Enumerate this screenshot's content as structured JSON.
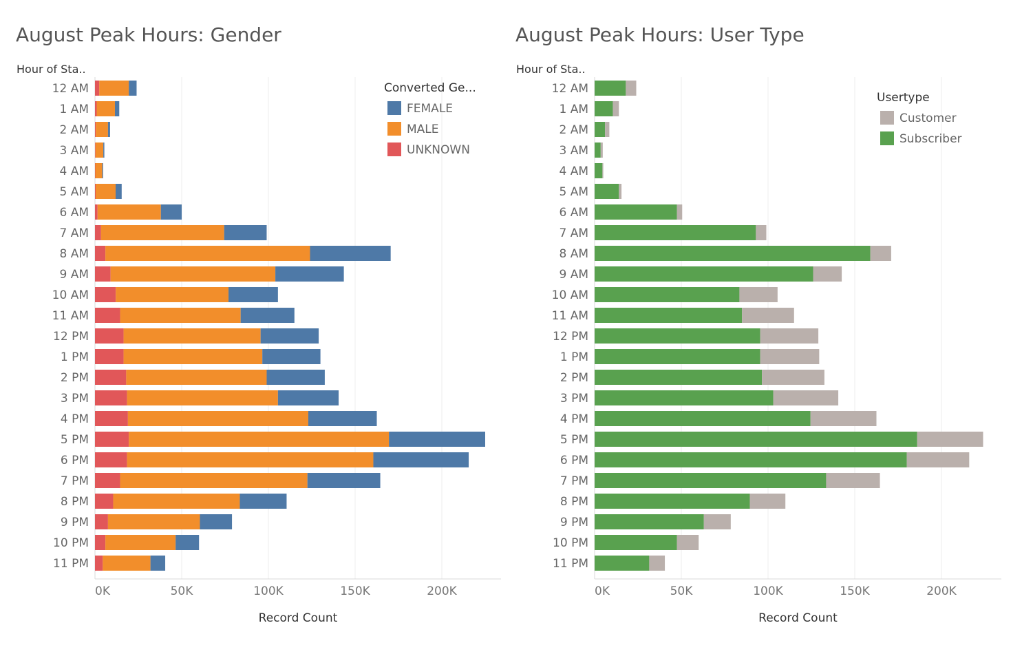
{
  "colors": {
    "female": "#4e79a7",
    "male": "#f28e2b",
    "unknown": "#e15759",
    "customer": "#bab0ac",
    "subscriber": "#59a14f"
  },
  "chart_data": [
    {
      "type": "bar",
      "orientation": "horizontal",
      "stacked": true,
      "title": "August Peak Hours: Gender",
      "row_header": "Hour of Sta..",
      "xlabel": "Record Count",
      "xlim": [
        0,
        232000
      ],
      "xticks": [
        "0K",
        "50K",
        "100K",
        "150K",
        "200K"
      ],
      "xtick_values": [
        0,
        50000,
        100000,
        150000,
        200000
      ],
      "grid": true,
      "legend": {
        "title": "Converted Ge...",
        "placement": "top-right",
        "items": [
          {
            "label": "FEMALE",
            "color": "#4e79a7"
          },
          {
            "label": "MALE",
            "color": "#f28e2b"
          },
          {
            "label": "UNKNOWN",
            "color": "#e15759"
          }
        ]
      },
      "categories": [
        "12 AM",
        "1 AM",
        "2 AM",
        "3 AM",
        "4 AM",
        "5 AM",
        "6 AM",
        "7 AM",
        "8 AM",
        "9 AM",
        "10 AM",
        "11 AM",
        "12 PM",
        "1 PM",
        "2 PM",
        "3 PM",
        "4 PM",
        "5 PM",
        "6 PM",
        "7 PM",
        "8 PM",
        "9 PM",
        "10 PM",
        "11 PM"
      ],
      "series": [
        {
          "name": "UNKNOWN",
          "color": "#e15759",
          "values": [
            2500,
            1000,
            500,
            300,
            200,
            400,
            1500,
            3500,
            6000,
            9000,
            12000,
            14500,
            16500,
            16500,
            18000,
            18500,
            19000,
            19500,
            18500,
            14500,
            10500,
            7500,
            6000,
            4500
          ]
        },
        {
          "name": "MALE",
          "color": "#f28e2b",
          "values": [
            17000,
            10500,
            7000,
            4500,
            4000,
            11500,
            36500,
            71000,
            118000,
            95000,
            65000,
            69500,
            79000,
            80000,
            81000,
            87000,
            104000,
            150000,
            142000,
            108000,
            73000,
            53000,
            40500,
            27500
          ]
        },
        {
          "name": "FEMALE",
          "color": "#4e79a7",
          "values": [
            4500,
            2500,
            1200,
            600,
            500,
            3500,
            12000,
            24500,
            46500,
            39500,
            28500,
            31000,
            33500,
            33500,
            33500,
            35000,
            39500,
            55500,
            55000,
            42000,
            27000,
            18500,
            13500,
            8500
          ]
        }
      ]
    },
    {
      "type": "bar",
      "orientation": "horizontal",
      "stacked": true,
      "title": "August Peak Hours: User Type",
      "row_header": "Hour of Sta..",
      "xlabel": "Record Count",
      "xlim": [
        0,
        232000
      ],
      "xticks": [
        "0K",
        "50K",
        "100K",
        "150K",
        "200K"
      ],
      "xtick_values": [
        0,
        50000,
        100000,
        150000,
        200000
      ],
      "grid": true,
      "legend": {
        "title": "Usertype",
        "placement": "top-right",
        "items": [
          {
            "label": "Customer",
            "color": "#bab0ac"
          },
          {
            "label": "Subscriber",
            "color": "#59a14f"
          }
        ]
      },
      "categories": [
        "12 AM",
        "1 AM",
        "2 AM",
        "3 AM",
        "4 AM",
        "5 AM",
        "6 AM",
        "7 AM",
        "8 AM",
        "9 AM",
        "10 AM",
        "11 AM",
        "12 PM",
        "1 PM",
        "2 PM",
        "3 PM",
        "4 PM",
        "5 PM",
        "6 PM",
        "7 PM",
        "8 PM",
        "9 PM",
        "10 PM",
        "11 PM"
      ],
      "series": [
        {
          "name": "Subscriber",
          "color": "#59a14f",
          "values": [
            18000,
            10500,
            6000,
            3500,
            4500,
            14000,
            47500,
            93000,
            159000,
            126000,
            83500,
            85000,
            95500,
            95500,
            96500,
            103000,
            124500,
            186000,
            180000,
            133500,
            89500,
            63000,
            47500,
            31500
          ]
        },
        {
          "name": "Customer",
          "color": "#bab0ac",
          "values": [
            6000,
            3500,
            2500,
            1200,
            500,
            1500,
            3000,
            6000,
            12000,
            16500,
            22000,
            30000,
            33500,
            34000,
            36000,
            37500,
            38000,
            38000,
            36000,
            31000,
            20500,
            15500,
            12500,
            9000
          ]
        }
      ]
    }
  ]
}
